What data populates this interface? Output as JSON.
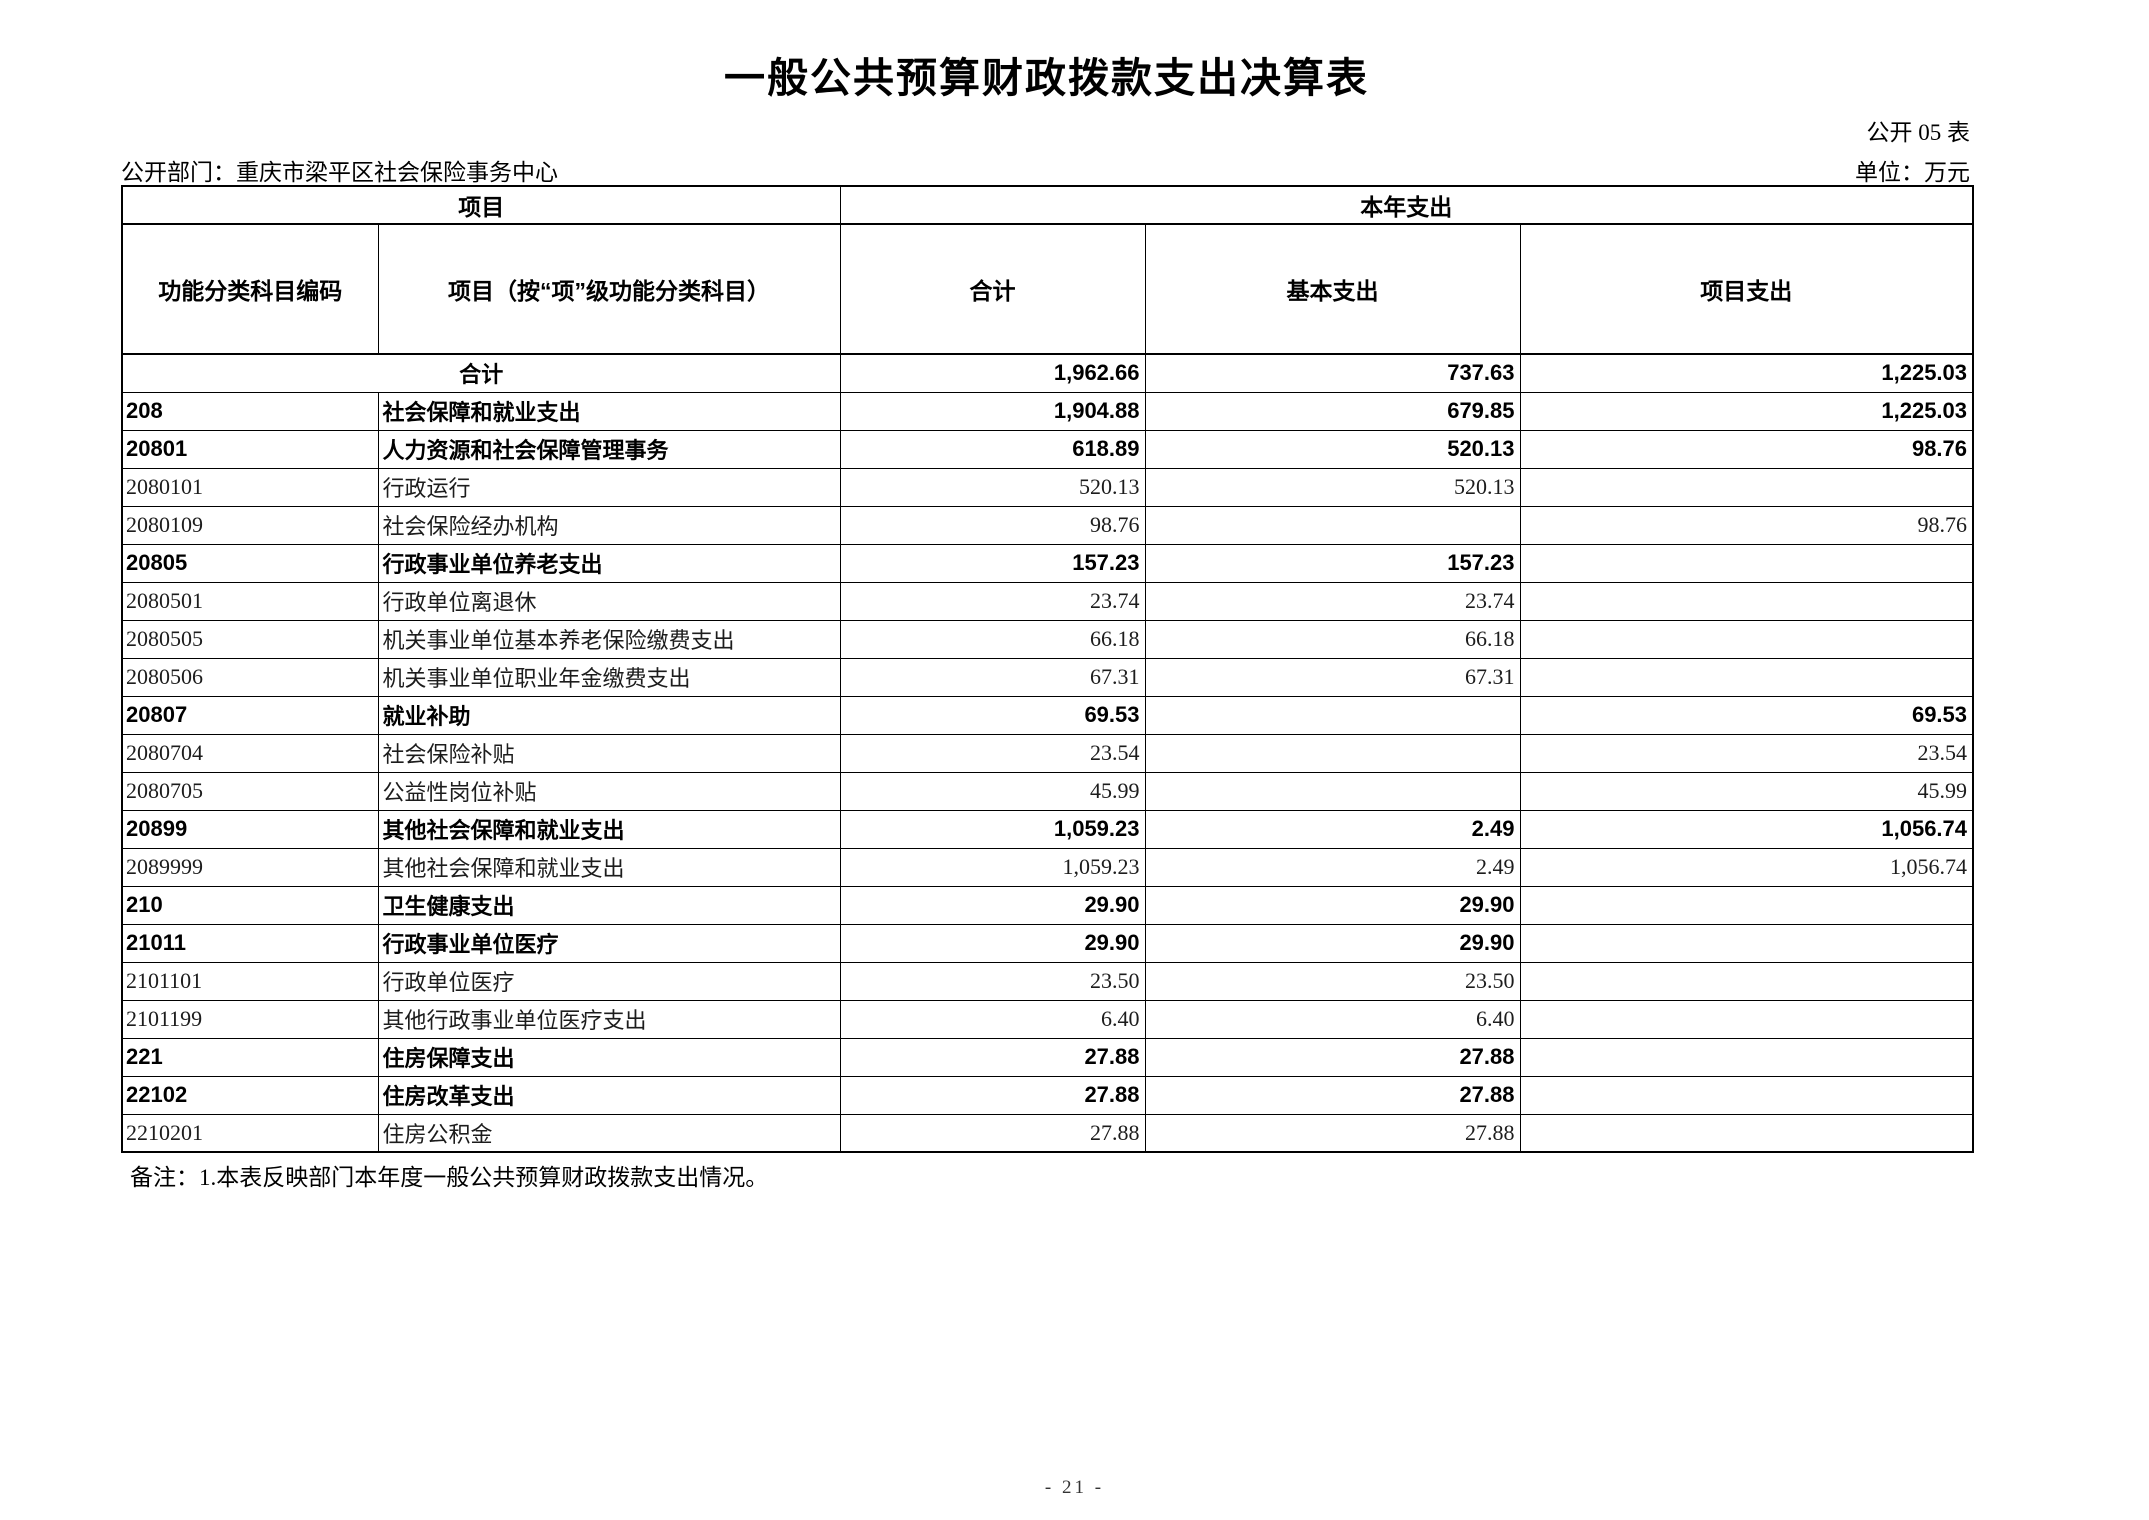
{
  "page": {
    "title": "一般公共预算财政拨款支出决算表",
    "form_number": "公开 05 表",
    "department": "公开部门：重庆市梁平区社会保险事务中心",
    "unit": "单位：万元",
    "note": "备注：1.本表反映部门本年度一般公共预算财政拨款支出情况。",
    "page_number": "- 21 -"
  },
  "table": {
    "header": {
      "group_item": "项目",
      "group_expense": "本年支出",
      "col_code": "功能分类科目编码",
      "col_item": "项目（按“项”级功能分类科目）",
      "col_total": "合计",
      "col_basic": "基本支出",
      "col_project": "项目支出"
    },
    "rows": [
      {
        "code": "",
        "name": "合计",
        "total": "1,962.66",
        "basic": "737.63",
        "project": "1,225.03",
        "level": "total"
      },
      {
        "code": "208",
        "name": "社会保障和就业支出",
        "total": "1,904.88",
        "basic": "679.85",
        "project": "1,225.03",
        "level": "class"
      },
      {
        "code": "20801",
        "name": "人力资源和社会保障管理事务",
        "total": "618.89",
        "basic": "520.13",
        "project": "98.76",
        "level": "class"
      },
      {
        "code": "2080101",
        "name": "行政运行",
        "total": "520.13",
        "basic": "520.13",
        "project": "",
        "level": "detail"
      },
      {
        "code": "2080109",
        "name": "社会保险经办机构",
        "total": "98.76",
        "basic": "",
        "project": "98.76",
        "level": "detail"
      },
      {
        "code": "20805",
        "name": "行政事业单位养老支出",
        "total": "157.23",
        "basic": "157.23",
        "project": "",
        "level": "class"
      },
      {
        "code": "2080501",
        "name": "行政单位离退休",
        "total": "23.74",
        "basic": "23.74",
        "project": "",
        "level": "detail"
      },
      {
        "code": "2080505",
        "name": "机关事业单位基本养老保险缴费支出",
        "total": "66.18",
        "basic": "66.18",
        "project": "",
        "level": "detail"
      },
      {
        "code": "2080506",
        "name": "机关事业单位职业年金缴费支出",
        "total": "67.31",
        "basic": "67.31",
        "project": "",
        "level": "detail"
      },
      {
        "code": "20807",
        "name": "就业补助",
        "total": "69.53",
        "basic": "",
        "project": "69.53",
        "level": "class"
      },
      {
        "code": "2080704",
        "name": "社会保险补贴",
        "total": "23.54",
        "basic": "",
        "project": "23.54",
        "level": "detail"
      },
      {
        "code": "2080705",
        "name": "公益性岗位补贴",
        "total": "45.99",
        "basic": "",
        "project": "45.99",
        "level": "detail"
      },
      {
        "code": "20899",
        "name": "其他社会保障和就业支出",
        "total": "1,059.23",
        "basic": "2.49",
        "project": "1,056.74",
        "level": "class"
      },
      {
        "code": "2089999",
        "name": "其他社会保障和就业支出",
        "total": "1,059.23",
        "basic": "2.49",
        "project": "1,056.74",
        "level": "detail"
      },
      {
        "code": "210",
        "name": "卫生健康支出",
        "total": "29.90",
        "basic": "29.90",
        "project": "",
        "level": "class"
      },
      {
        "code": "21011",
        "name": "行政事业单位医疗",
        "total": "29.90",
        "basic": "29.90",
        "project": "",
        "level": "class"
      },
      {
        "code": "2101101",
        "name": "行政单位医疗",
        "total": "23.50",
        "basic": "23.50",
        "project": "",
        "level": "detail"
      },
      {
        "code": "2101199",
        "name": "其他行政事业单位医疗支出",
        "total": "6.40",
        "basic": "6.40",
        "project": "",
        "level": "detail"
      },
      {
        "code": "221",
        "name": "住房保障支出",
        "total": "27.88",
        "basic": "27.88",
        "project": "",
        "level": "class"
      },
      {
        "code": "22102",
        "name": "住房改革支出",
        "total": "27.88",
        "basic": "27.88",
        "project": "",
        "level": "class"
      },
      {
        "code": "2210201",
        "name": "住房公积金",
        "total": "27.88",
        "basic": "27.88",
        "project": "",
        "level": "detail"
      }
    ]
  }
}
